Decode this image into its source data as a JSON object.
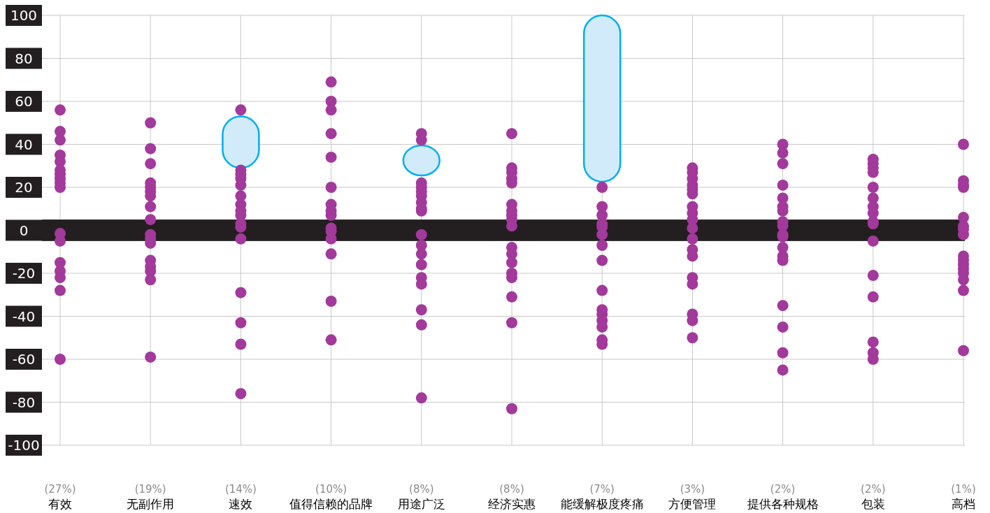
{
  "chart_data": {
    "type": "scatter",
    "categories": [
      "(27%)\n有效",
      "(19%)\n无副作用",
      "(14%)\n速效",
      "(10%)\n值得信赖的品牌",
      "(8%)\n用途广泛",
      "(8%)\n经济实惠",
      "(7%)\n能缓解极度疼痛",
      "(3%)\n方便管理",
      "(2%)\n提供各种规格",
      "(2%)\n包装",
      "(1%)\n高档"
    ],
    "ylim": [
      -100,
      100
    ],
    "yticks": [
      -100,
      -80,
      -60,
      -40,
      -20,
      0,
      20,
      40,
      60,
      80,
      100
    ],
    "grid": true,
    "marker": "circle",
    "bands": [
      {
        "axis": "y",
        "from": -5,
        "to": 5,
        "color": "#231f20"
      }
    ],
    "series": [
      {
        "type": "bar",
        "color": "#d1ebfb",
        "base": [
          null,
          null,
          29,
          null,
          25.5,
          null,
          22.6,
          null,
          null,
          null,
          null
        ],
        "values": [
          null,
          null,
          24,
          null,
          14,
          null,
          77.4,
          null,
          null,
          null,
          null
        ]
      },
      {
        "color": "#a2399b",
        "x": [
          "(27%)\n有效",
          "(27%)\n有效",
          "(27%)\n有效",
          "(27%)\n有效",
          "(27%)\n有效",
          "(27%)\n有效",
          "(27%)\n有效",
          "(27%)\n有效",
          "(27%)\n有效",
          "(27%)\n有效",
          "(27%)\n有效",
          "(27%)\n有效",
          "(27%)\n有效",
          "(27%)\n有效",
          "(27%)\n有效",
          "(27%)\n有效",
          "(27%)\n有效",
          "(19%)\n无副作用",
          "(19%)\n无副作用",
          "(19%)\n无副作用",
          "(19%)\n无副作用",
          "(19%)\n无副作用",
          "(19%)\n无副作用",
          "(19%)\n无副作用",
          "(19%)\n无副作用",
          "(19%)\n无副作用",
          "(19%)\n无副作用",
          "(19%)\n无副作用",
          "(19%)\n无副作用",
          "(19%)\n无副作用",
          "(19%)\n无副作用",
          "(19%)\n无副作用",
          "(19%)\n无副作用",
          "(19%)\n无副作用",
          "(14%)\n速效",
          "(14%)\n速效",
          "(14%)\n速效",
          "(14%)\n速效",
          "(14%)\n速效",
          "(14%)\n速效",
          "(14%)\n速效",
          "(14%)\n速效",
          "(14%)\n速效",
          "(14%)\n速效",
          "(14%)\n速效",
          "(14%)\n速效",
          "(14%)\n速效",
          "(14%)\n速效",
          "(14%)\n速效",
          "(14%)\n速效",
          "(10%)\n值得信赖的品牌",
          "(10%)\n值得信赖的品牌",
          "(10%)\n值得信赖的品牌",
          "(10%)\n值得信赖的品牌",
          "(10%)\n值得信赖的品牌",
          "(10%)\n值得信赖的品牌",
          "(10%)\n值得信赖的品牌",
          "(10%)\n值得信赖的品牌",
          "(10%)\n值得信赖的品牌",
          "(10%)\n值得信赖的品牌",
          "(10%)\n值得信赖的品牌",
          "(10%)\n值得信赖的品牌",
          "(10%)\n值得信赖的品牌",
          "(10%)\n值得信赖的品牌",
          "(10%)\n值得信赖的品牌",
          "(8%)\n用途广泛",
          "(8%)\n用途广泛",
          "(8%)\n用途广泛",
          "(8%)\n用途广泛",
          "(8%)\n用途广泛",
          "(8%)\n用途广泛",
          "(8%)\n用途广泛",
          "(8%)\n用途广泛",
          "(8%)\n用途广泛",
          "(8%)\n用途广泛",
          "(8%)\n用途广泛",
          "(8%)\n用途广泛",
          "(8%)\n用途广泛",
          "(8%)\n用途广泛",
          "(8%)\n用途广泛",
          "(8%)\n用途广泛",
          "(8%)\n用途广泛",
          "(8%)\n用途广泛",
          "(8%)\n经济实惠",
          "(8%)\n经济实惠",
          "(8%)\n经济实惠",
          "(8%)\n经济实惠",
          "(8%)\n经济实惠",
          "(8%)\n经济实惠",
          "(8%)\n经济实惠",
          "(8%)\n经济实惠",
          "(8%)\n经济实惠",
          "(8%)\n经济实惠",
          "(8%)\n经济实惠",
          "(8%)\n经济实惠",
          "(8%)\n经济实惠",
          "(8%)\n经济实惠",
          "(8%)\n经济实惠",
          "(8%)\n经济实惠",
          "(8%)\n经济实惠",
          "(8%)\n经济实惠",
          "(7%)\n能缓解极度疼痛",
          "(7%)\n能缓解极度疼痛",
          "(7%)\n能缓解极度疼痛",
          "(7%)\n能缓解极度疼痛",
          "(7%)\n能缓解极度疼痛",
          "(7%)\n能缓解极度疼痛",
          "(7%)\n能缓解极度疼痛",
          "(7%)\n能缓解极度疼痛",
          "(7%)\n能缓解极度疼痛",
          "(7%)\n能缓解极度疼痛",
          "(7%)\n能缓解极度疼痛",
          "(7%)\n能缓解极度疼痛",
          "(7%)\n能缓解极度疼痛",
          "(7%)\n能缓解极度疼痛",
          "(7%)\n能缓解极度疼痛",
          "(3%)\n方便管理",
          "(3%)\n方便管理",
          "(3%)\n方便管理",
          "(3%)\n方便管理",
          "(3%)\n方便管理",
          "(3%)\n方便管理",
          "(3%)\n方便管理",
          "(3%)\n方便管理",
          "(3%)\n方便管理",
          "(3%)\n方便管理",
          "(3%)\n方便管理",
          "(3%)\n方便管理",
          "(3%)\n方便管理",
          "(3%)\n方便管理",
          "(3%)\n方便管理",
          "(3%)\n方便管理",
          "(3%)\n方便管理",
          "(3%)\n方便管理",
          "(2%)\n提供各种规格",
          "(2%)\n提供各种规格",
          "(2%)\n提供各种规格",
          "(2%)\n提供各种规格",
          "(2%)\n提供各种规格",
          "(2%)\n提供各种规格",
          "(2%)\n提供各种规格",
          "(2%)\n提供各种规格",
          "(2%)\n提供各种规格",
          "(2%)\n提供各种规格",
          "(2%)\n提供各种规格",
          "(2%)\n提供各种规格",
          "(2%)\n提供各种规格",
          "(2%)\n提供各种规格",
          "(2%)\n提供各种规格",
          "(2%)\n提供各种规格",
          "(2%)\n提供各种规格",
          "(2%)\n提供各种规格",
          "(2%)\n包装",
          "(2%)\n包装",
          "(2%)\n包装",
          "(2%)\n包装",
          "(2%)\n包装",
          "(2%)\n包装",
          "(2%)\n包装",
          "(2%)\n包装",
          "(2%)\n包装",
          "(2%)\n包装",
          "(2%)\n包装",
          "(2%)\n包装",
          "(2%)\n包装",
          "(2%)\n包装",
          "(2%)\n包装",
          "(2%)\n包装",
          "(1%)\n高档",
          "(1%)\n高档",
          "(1%)\n高档",
          "(1%)\n高档",
          "(1%)\n高档",
          "(1%)\n高档",
          "(1%)\n高档",
          "(1%)\n高档",
          "(1%)\n高档",
          "(1%)\n高档",
          "(1%)\n高档",
          "(1%)\n高档",
          "(1%)\n高档",
          "(1%)\n高档",
          "(1%)\n高档",
          "(1%)\n高档"
        ],
        "values": [
          56,
          46,
          42,
          35,
          32,
          28,
          26,
          24,
          22,
          20,
          -1.5,
          -5,
          -15,
          -19,
          -22,
          -28,
          -60,
          50,
          38,
          31,
          22,
          20,
          18,
          16,
          11,
          5,
          -2,
          -4,
          -6,
          -14,
          -17,
          -19,
          -23,
          -59,
          56,
          28,
          26,
          24,
          21,
          16,
          12,
          9,
          7,
          3,
          1.5,
          -4,
          -29,
          -43,
          -53,
          -76,
          69,
          60,
          56,
          45,
          34,
          20,
          12,
          9,
          7,
          1,
          -0.5,
          -4,
          -11,
          -33,
          -51,
          45,
          42,
          22,
          20,
          18,
          16,
          13,
          10,
          9,
          -2,
          -7,
          -11,
          -16,
          -22,
          -25,
          -37,
          -44,
          -78,
          45,
          29,
          27,
          24,
          22,
          12,
          9,
          7,
          5,
          2,
          -8,
          -11,
          -15,
          -20,
          -22,
          -31,
          -43,
          -83,
          20,
          11,
          7,
          3,
          1.5,
          -2,
          -7,
          -14,
          -28,
          -37,
          -39,
          -42,
          -45,
          -51,
          -53,
          29,
          27,
          24,
          21,
          19,
          17,
          11,
          8,
          5,
          1,
          -4,
          -9,
          -12,
          -22,
          -25,
          -39,
          -42,
          -50,
          40,
          36,
          31,
          21,
          15,
          11,
          9,
          4,
          2,
          -2,
          -3,
          -8,
          -12,
          -14,
          -35,
          -45,
          -57,
          -65,
          33,
          31,
          29,
          27,
          20,
          15,
          11,
          8,
          4,
          3,
          -5,
          -21,
          -31,
          -52,
          -57,
          -60,
          40,
          23,
          21,
          20,
          6,
          2,
          0.5,
          -2,
          -12,
          -14,
          -16,
          -18,
          -20,
          -23,
          -28,
          -56
        ]
      }
    ]
  }
}
